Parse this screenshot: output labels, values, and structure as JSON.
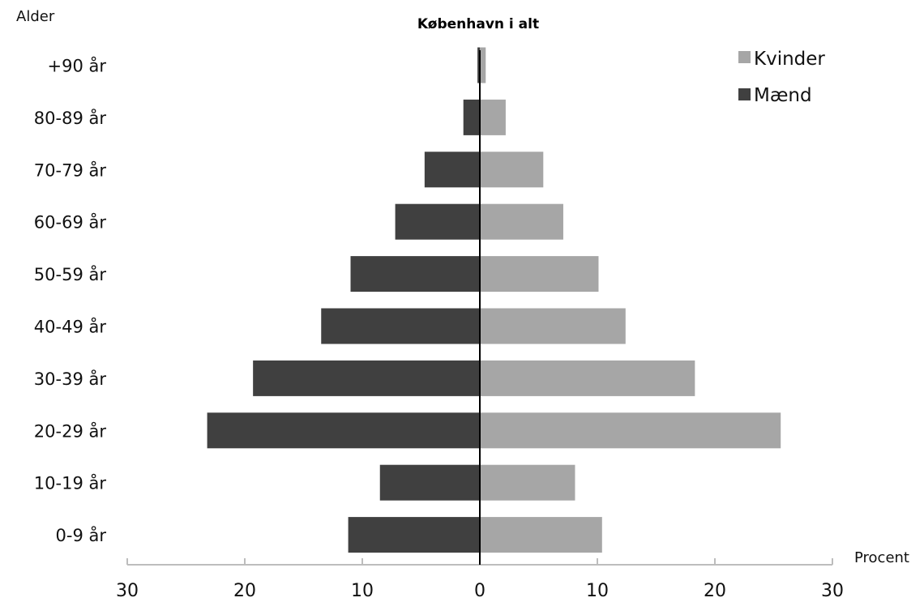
{
  "chart_data": {
    "type": "bar",
    "orientation": "horizontal",
    "layout": "population-pyramid",
    "title": "København i alt",
    "ylabel": "Alder",
    "xlabel": "Procent",
    "categories": [
      "+90 år",
      "80-89 år",
      "70-79 år",
      "60-69 år",
      "50-59 år",
      "40-49 år",
      "30-39 år",
      "20-29 år",
      "10-19 år",
      "0-9 år"
    ],
    "series": [
      {
        "name": "Kvinder",
        "side": "right",
        "color": "#a6a6a6",
        "values": [
          0.5,
          2.2,
          5.4,
          7.1,
          10.1,
          12.4,
          18.3,
          25.6,
          8.1,
          10.4
        ]
      },
      {
        "name": "Mænd",
        "side": "left",
        "color": "#404040",
        "values": [
          0.2,
          1.4,
          4.7,
          7.2,
          11.0,
          13.5,
          19.3,
          23.2,
          8.5,
          11.2
        ]
      }
    ],
    "xlim": [
      -30,
      30
    ],
    "xticks": [
      -30,
      -20,
      -10,
      0,
      10,
      20,
      30
    ],
    "xtick_labels": [
      "30",
      "20",
      "10",
      "0",
      "10",
      "20",
      "30"
    ],
    "legend_position": "top-right",
    "grid": false
  }
}
